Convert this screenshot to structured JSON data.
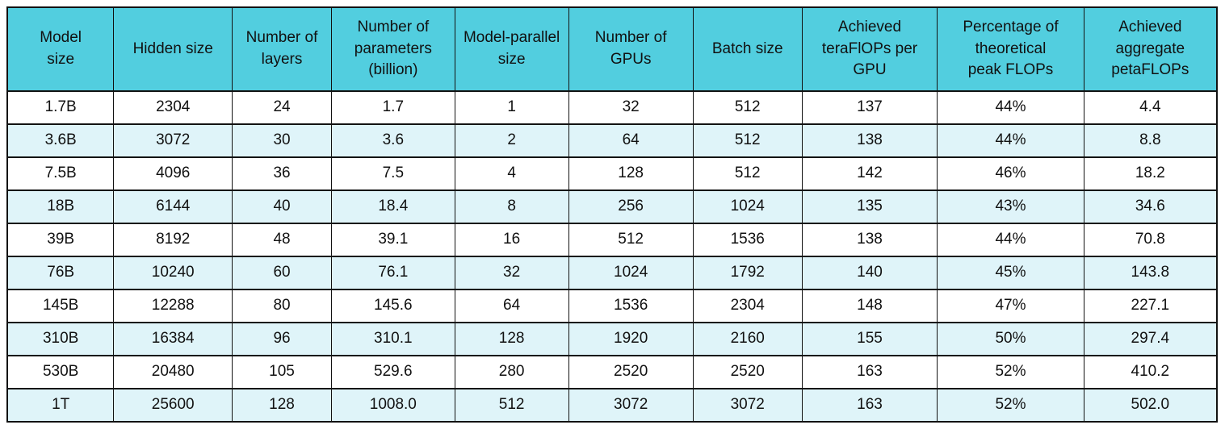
{
  "chart_data": {
    "type": "table",
    "title": "Model scaling and achieved FLOPs table",
    "columns": [
      "Model\nsize",
      "Hidden size",
      "Number of\nlayers",
      "Number of\nparameters\n(billion)",
      "Model-parallel\nsize",
      "Number of\nGPUs",
      "Batch size",
      "Achieved\nteraFlOPs per\nGPU",
      "Percentage of\ntheoretical\npeak FLOPs",
      "Achieved\naggregate\npetaFLOPs"
    ],
    "rows": [
      [
        "1.7B",
        "2304",
        "24",
        "1.7",
        "1",
        "32",
        "512",
        "137",
        "44%",
        "4.4"
      ],
      [
        "3.6B",
        "3072",
        "30",
        "3.6",
        "2",
        "64",
        "512",
        "138",
        "44%",
        "8.8"
      ],
      [
        "7.5B",
        "4096",
        "36",
        "7.5",
        "4",
        "128",
        "512",
        "142",
        "46%",
        "18.2"
      ],
      [
        "18B",
        "6144",
        "40",
        "18.4",
        "8",
        "256",
        "1024",
        "135",
        "43%",
        "34.6"
      ],
      [
        "39B",
        "8192",
        "48",
        "39.1",
        "16",
        "512",
        "1536",
        "138",
        "44%",
        "70.8"
      ],
      [
        "76B",
        "10240",
        "60",
        "76.1",
        "32",
        "1024",
        "1792",
        "140",
        "45%",
        "143.8"
      ],
      [
        "145B",
        "12288",
        "80",
        "145.6",
        "64",
        "1536",
        "2304",
        "148",
        "47%",
        "227.1"
      ],
      [
        "310B",
        "16384",
        "96",
        "310.1",
        "128",
        "1920",
        "2160",
        "155",
        "50%",
        "297.4"
      ],
      [
        "530B",
        "20480",
        "105",
        "529.6",
        "280",
        "2520",
        "2520",
        "163",
        "52%",
        "410.2"
      ],
      [
        "1T",
        "25600",
        "128",
        "1008.0",
        "512",
        "3072",
        "3072",
        "163",
        "52%",
        "502.0"
      ]
    ],
    "colors": {
      "header_bg": "#52CEDF",
      "row_bg": "#FFFFFF",
      "row_alt_bg": "#DFF4F9",
      "border": "#121212",
      "text": "#111111"
    },
    "layout": {
      "striping": "rows 2,4,6,8,10 tinted light cyan",
      "text_align": "center",
      "grid": "full black gridlines"
    }
  }
}
